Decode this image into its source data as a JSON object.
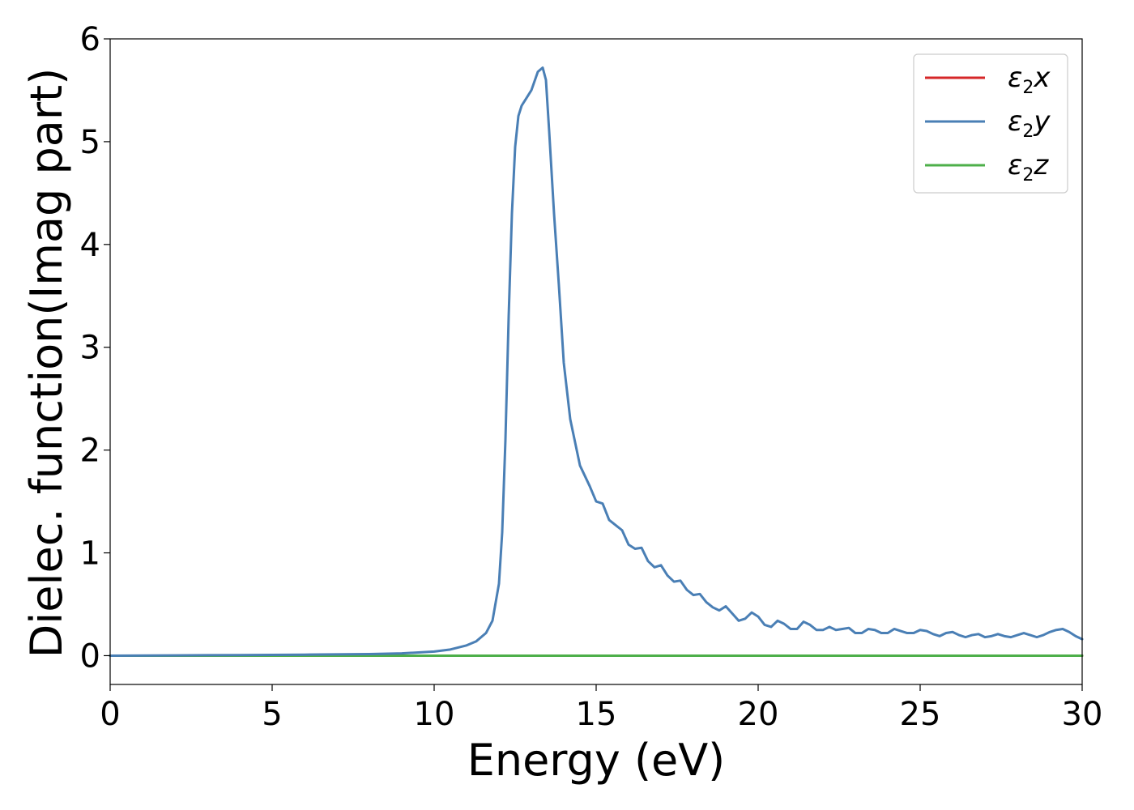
{
  "chart_data": {
    "type": "line",
    "xlabel": "Energy (eV)",
    "ylabel": "Dielec. function(Imag part)",
    "xlim": [
      0,
      30
    ],
    "ylim": [
      -0.28,
      6.0
    ],
    "xticks": [
      0,
      5,
      10,
      15,
      20,
      25,
      30
    ],
    "yticks": [
      0,
      1,
      2,
      3,
      4,
      5,
      6
    ],
    "grid": false,
    "legend": "top-right",
    "series": [
      {
        "name": "ε2x",
        "legend": {
          "base": "ε",
          "sub": "2",
          "tail": "x"
        },
        "color": "#d62728",
        "x": [
          0,
          30
        ],
        "y": [
          0,
          0
        ]
      },
      {
        "name": "ε2y",
        "legend": {
          "base": "ε",
          "sub": "2",
          "tail": "y"
        },
        "color": "#4a7fb5",
        "x": [
          0,
          2,
          4,
          6,
          8,
          9,
          10,
          10.5,
          11,
          11.3,
          11.6,
          11.8,
          12.0,
          12.1,
          12.2,
          12.3,
          12.4,
          12.5,
          12.6,
          12.7,
          12.8,
          13.0,
          13.2,
          13.35,
          13.45,
          13.55,
          13.7,
          13.85,
          14.0,
          14.2,
          14.5,
          14.8,
          15.0,
          15.2,
          15.4,
          15.6,
          15.8,
          16.0,
          16.2,
          16.4,
          16.6,
          16.8,
          17.0,
          17.2,
          17.4,
          17.6,
          17.8,
          18.0,
          18.2,
          18.4,
          18.6,
          18.8,
          19.0,
          19.2,
          19.4,
          19.6,
          19.8,
          20.0,
          20.2,
          20.4,
          20.6,
          20.8,
          21.0,
          21.2,
          21.4,
          21.6,
          21.8,
          22.0,
          22.2,
          22.4,
          22.6,
          22.8,
          23.0,
          23.2,
          23.4,
          23.6,
          23.8,
          24.0,
          24.2,
          24.4,
          24.6,
          24.8,
          25.0,
          25.2,
          25.4,
          25.6,
          25.8,
          26.0,
          26.2,
          26.4,
          26.6,
          26.8,
          27.0,
          27.2,
          27.4,
          27.6,
          27.8,
          28.0,
          28.2,
          28.4,
          28.6,
          28.8,
          29.0,
          29.2,
          29.4,
          29.6,
          29.8,
          30.0
        ],
        "y": [
          0,
          0.003,
          0.006,
          0.01,
          0.015,
          0.022,
          0.04,
          0.06,
          0.1,
          0.14,
          0.22,
          0.34,
          0.7,
          1.2,
          2.1,
          3.3,
          4.3,
          4.95,
          5.25,
          5.35,
          5.4,
          5.5,
          5.68,
          5.72,
          5.6,
          5.1,
          4.3,
          3.6,
          2.85,
          2.3,
          1.85,
          1.65,
          1.5,
          1.48,
          1.32,
          1.27,
          1.22,
          1.08,
          1.04,
          1.05,
          0.92,
          0.86,
          0.88,
          0.78,
          0.72,
          0.73,
          0.64,
          0.59,
          0.6,
          0.52,
          0.47,
          0.44,
          0.48,
          0.41,
          0.34,
          0.36,
          0.42,
          0.38,
          0.3,
          0.28,
          0.34,
          0.31,
          0.26,
          0.26,
          0.33,
          0.3,
          0.25,
          0.25,
          0.28,
          0.25,
          0.26,
          0.27,
          0.22,
          0.22,
          0.26,
          0.25,
          0.22,
          0.22,
          0.26,
          0.24,
          0.22,
          0.22,
          0.25,
          0.24,
          0.21,
          0.19,
          0.22,
          0.23,
          0.2,
          0.18,
          0.2,
          0.21,
          0.18,
          0.19,
          0.21,
          0.19,
          0.18,
          0.2,
          0.22,
          0.2,
          0.18,
          0.2,
          0.23,
          0.25,
          0.26,
          0.23,
          0.19,
          0.16
        ]
      },
      {
        "name": "ε2z",
        "legend": {
          "base": "ε",
          "sub": "2",
          "tail": "z"
        },
        "color": "#4daf4a",
        "x": [
          0,
          30
        ],
        "y": [
          0,
          0
        ]
      }
    ]
  }
}
